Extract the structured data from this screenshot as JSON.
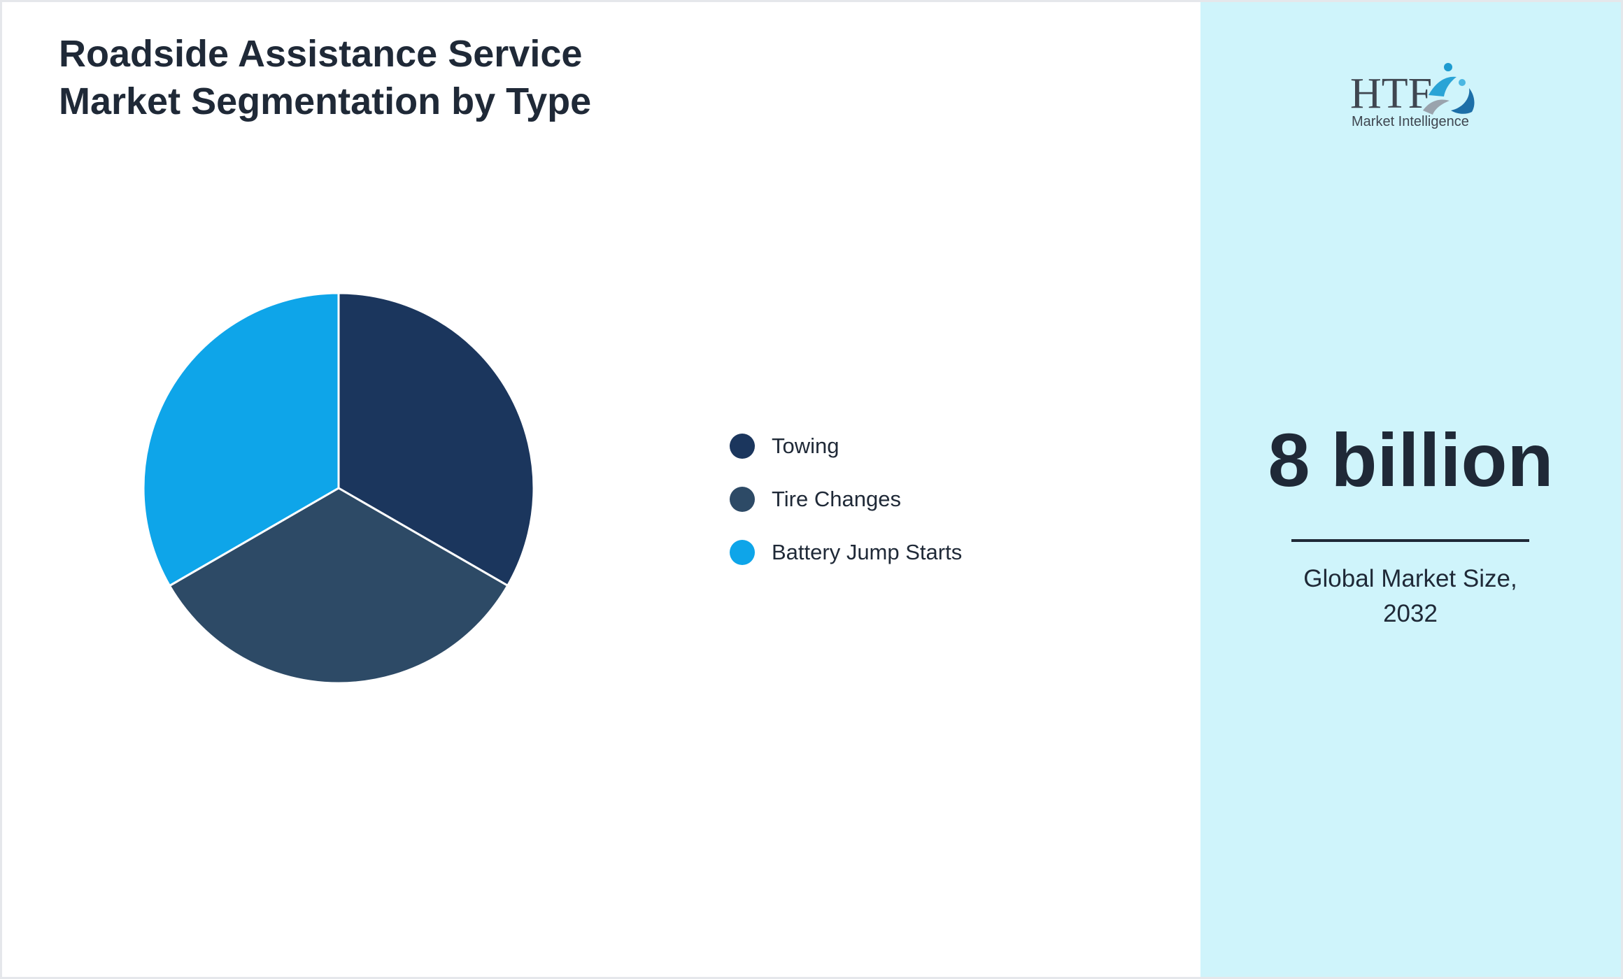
{
  "chart_data": {
    "type": "pie",
    "title_lines": [
      "Roadside Assistance Service",
      "Market Segmentation by Type"
    ],
    "categories": [
      "Towing",
      "Tire Changes",
      "Battery Jump Starts"
    ],
    "values": [
      33.33,
      33.33,
      33.34
    ],
    "colors": [
      "#1b365d",
      "#2d4a66",
      "#0ea5e9"
    ]
  },
  "logo": {
    "brand": "HTF",
    "tagline": "Market Intelligence"
  },
  "stat": {
    "value": "8 billion",
    "caption_line1": "Global Market Size,",
    "caption_line2": "2032"
  }
}
